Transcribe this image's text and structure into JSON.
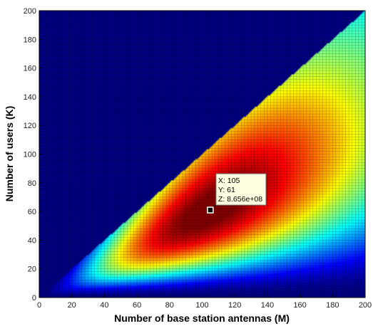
{
  "chart_data": {
    "type": "heatmap",
    "title": "",
    "xlabel": "Number of base station antennas (M)",
    "ylabel": "Number of users (K)",
    "xlim": [
      0,
      200
    ],
    "ylim": [
      0,
      200
    ],
    "xticks": [
      0,
      20,
      40,
      60,
      80,
      100,
      120,
      140,
      160,
      180,
      200
    ],
    "yticks": [
      0,
      20,
      40,
      60,
      80,
      100,
      120,
      140,
      160,
      180,
      200
    ],
    "colormap": "jet",
    "valid_region": "K < M",
    "peak": {
      "x": 105,
      "y": 61,
      "z": 865600000
    },
    "low_color": "#000080",
    "high_color": "#ff0000",
    "grid": "dense mesh",
    "datatip": {
      "x_text": "X: 105",
      "y_text": "Y: 61",
      "z_text": "Z: 8.656e+08"
    }
  }
}
